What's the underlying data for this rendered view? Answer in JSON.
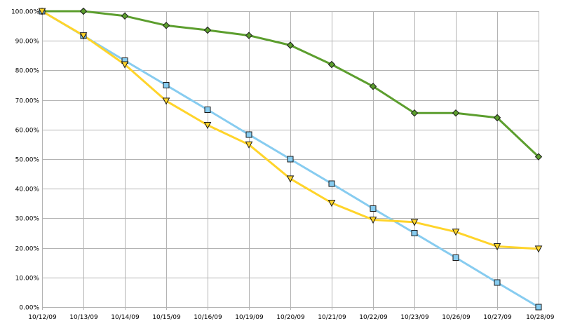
{
  "chart_data": {
    "type": "line",
    "title": "",
    "xlabel": "",
    "ylabel": "",
    "categories": [
      "10/12/09",
      "10/13/09",
      "10/14/09",
      "10/15/09",
      "10/16/09",
      "10/19/09",
      "10/20/09",
      "10/21/09",
      "10/22/09",
      "10/23/09",
      "10/26/09",
      "10/27/09",
      "10/28/09"
    ],
    "ylim": [
      0,
      1
    ],
    "y_ticks": [
      0,
      0.1,
      0.2,
      0.3,
      0.4,
      0.5,
      0.6,
      0.7,
      0.8,
      0.9,
      1.0
    ],
    "y_tick_labels": [
      "0.00%",
      "10.00%",
      "20.00%",
      "30.00%",
      "40.00%",
      "50.00%",
      "60.00%",
      "70.00%",
      "80.00%",
      "90.00%",
      "100.00%"
    ],
    "grid": true,
    "legend": "none",
    "series": [
      {
        "color": "#5c9e2e",
        "marker": "diamond",
        "values": [
          1.0,
          1.0,
          0.984,
          0.952,
          0.936,
          0.918,
          0.885,
          0.82,
          0.746,
          0.656,
          0.656,
          0.64,
          0.508
        ]
      },
      {
        "color": "#87ccf0",
        "marker": "square",
        "values": [
          1.0,
          0.917,
          0.833,
          0.75,
          0.667,
          0.583,
          0.5,
          0.417,
          0.333,
          0.25,
          0.167,
          0.083,
          0.0
        ]
      },
      {
        "color": "#ffd42a",
        "marker": "triangle-down",
        "values": [
          1.0,
          0.918,
          0.82,
          0.697,
          0.615,
          0.549,
          0.434,
          0.352,
          0.295,
          0.287,
          0.254,
          0.205,
          0.197
        ]
      }
    ]
  }
}
